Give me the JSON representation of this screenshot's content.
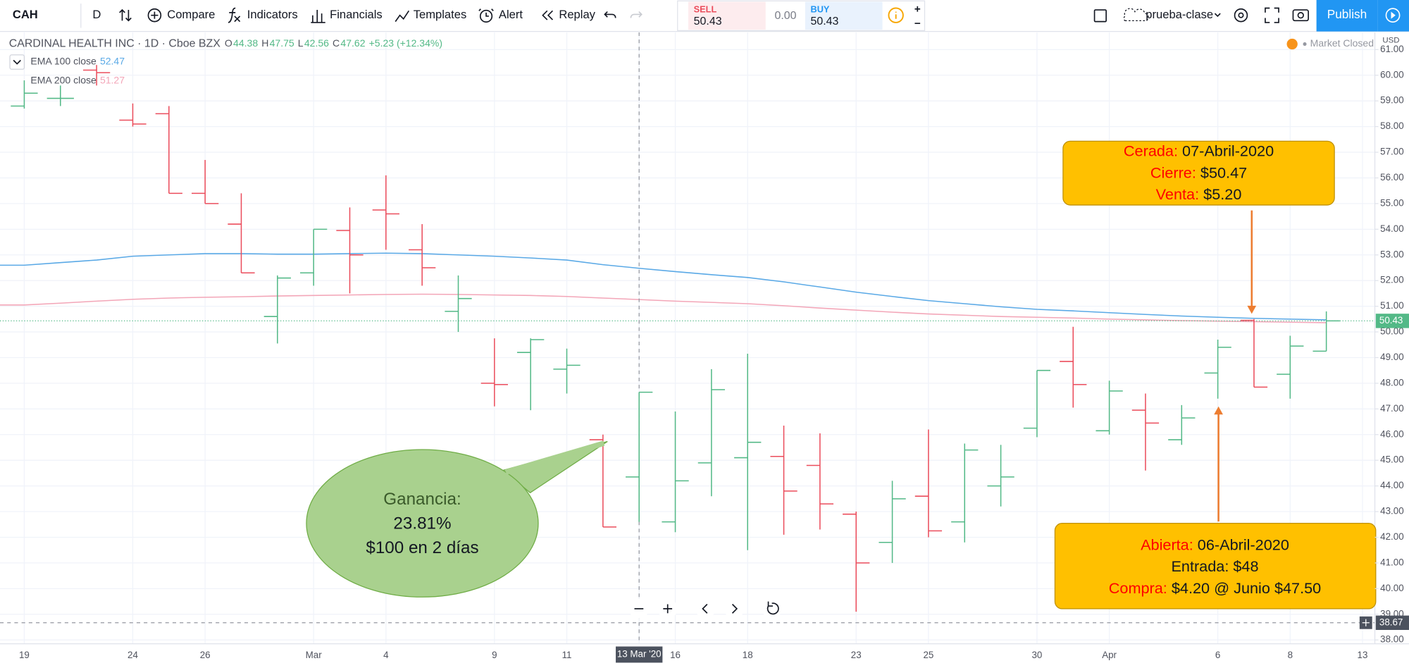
{
  "toolbar": {
    "symbol": "CAH",
    "interval": "D",
    "compare": "Compare",
    "indicators": "Indicators",
    "financials": "Financials",
    "templates": "Templates",
    "alert": "Alert",
    "replay": "Replay",
    "sell_label": "SELL",
    "sell_price": "50.43",
    "spread": "0.00",
    "buy_label": "BUY",
    "buy_price": "50.43",
    "layout_name": "prueba-clase",
    "publish": "Publish"
  },
  "legend": {
    "title": "CARDINAL HEALTH INC · 1D · Cboe BZX",
    "ohlc": [
      {
        "key": "O",
        "value": "44.38"
      },
      {
        "key": "H",
        "value": "47.75"
      },
      {
        "key": "L",
        "value": "42.56"
      },
      {
        "key": "C",
        "value": "47.62"
      }
    ],
    "change": "+5.23 (+12.34%)",
    "status": "Market Closed",
    "currency": "USD"
  },
  "chart_data": {
    "type": "ohlc",
    "up_color": "#53b987",
    "down_color": "#eb4d5c",
    "grid": true,
    "categories": [
      "19",
      null,
      null,
      "24",
      null,
      "26",
      null,
      null,
      "Mar",
      null,
      "4",
      null,
      null,
      "9",
      null,
      "11",
      null,
      "13 Mar '20",
      "16",
      null,
      "18",
      null,
      null,
      "23",
      null,
      "25",
      null,
      null,
      "30",
      null,
      "Apr",
      null,
      null,
      "6",
      null,
      "8",
      null,
      "13"
    ],
    "open": [
      58.8,
      59.1,
      60.2,
      58.25,
      58.5,
      55.4,
      54.2,
      50.6,
      52.3,
      53.95,
      54.75,
      53.2,
      50.8,
      48.0,
      49.2,
      48.55,
      45.8,
      44.35,
      42.6,
      44.9,
      45.1,
      45.15,
      44.8,
      42.9,
      41.8,
      43.6,
      42.6,
      44.0,
      46.25,
      48.85,
      46.15,
      46.95,
      45.8,
      48.4,
      50.45,
      48.35,
      49.25,
      null
    ],
    "high": [
      59.8,
      59.6,
      60.4,
      58.9,
      58.8,
      56.7,
      55.4,
      52.2,
      54.0,
      54.85,
      56.1,
      54.2,
      52.2,
      49.75,
      49.75,
      49.35,
      46.0,
      47.65,
      46.9,
      48.55,
      49.15,
      46.35,
      46.05,
      43.0,
      44.2,
      46.2,
      45.65,
      45.6,
      48.5,
      50.2,
      48.1,
      47.6,
      47.15,
      49.7,
      50.5,
      49.85,
      50.8,
      null
    ],
    "low": [
      58.7,
      58.8,
      59.6,
      58.0,
      55.4,
      55.0,
      52.3,
      49.55,
      51.8,
      51.5,
      53.2,
      51.8,
      50.0,
      47.1,
      46.95,
      47.6,
      42.4,
      42.6,
      42.2,
      43.6,
      41.5,
      42.1,
      42.3,
      39.1,
      41.0,
      42.0,
      41.8,
      43.2,
      45.9,
      47.05,
      46.0,
      44.6,
      45.6,
      47.4,
      47.85,
      47.4,
      49.25,
      null
    ],
    "close": [
      59.3,
      59.1,
      60.1,
      58.1,
      55.4,
      55.0,
      52.3,
      52.1,
      54.0,
      53.0,
      54.6,
      52.5,
      51.3,
      47.95,
      49.7,
      48.7,
      42.4,
      47.65,
      44.2,
      47.75,
      45.7,
      43.8,
      43.3,
      41.0,
      43.5,
      42.25,
      45.4,
      44.35,
      48.5,
      47.95,
      47.7,
      46.45,
      46.65,
      49.4,
      47.85,
      49.45,
      50.43,
      null
    ],
    "lines": [
      {
        "name": "EMA 100 close",
        "legend_value": "52.47",
        "color": "#5aa9e6",
        "values": [
          52.6,
          52.7,
          52.8,
          52.95,
          53.0,
          53.05,
          53.05,
          53.03,
          53.03,
          53.05,
          53.07,
          53.05,
          53.0,
          52.95,
          52.88,
          52.8,
          52.62,
          52.48,
          52.35,
          52.23,
          52.12,
          51.95,
          51.75,
          51.55,
          51.38,
          51.22,
          51.1,
          50.98,
          50.88,
          50.82,
          50.75,
          50.68,
          50.62,
          50.57,
          50.53,
          50.5,
          50.47,
          null
        ]
      },
      {
        "name": "EMA 200 close",
        "legend_value": "51.27",
        "color": "#f3a6b8",
        "values": [
          51.05,
          51.12,
          51.2,
          51.27,
          51.32,
          51.35,
          51.37,
          51.4,
          51.42,
          51.44,
          51.46,
          51.47,
          51.46,
          51.44,
          51.42,
          51.38,
          51.32,
          51.26,
          51.2,
          51.15,
          51.1,
          51.02,
          50.93,
          50.85,
          50.77,
          50.7,
          50.65,
          50.6,
          50.57,
          50.54,
          50.5,
          50.47,
          50.44,
          50.42,
          50.4,
          50.38,
          50.36,
          null
        ]
      }
    ],
    "ylim": [
      37.85,
      61.67
    ],
    "yticks": [
      {
        "value": 38,
        "label": "38.00"
      },
      {
        "value": 39,
        "label": "39.00"
      },
      {
        "value": 40,
        "label": "40.00"
      },
      {
        "value": 41,
        "label": "41.00"
      },
      {
        "value": 42,
        "label": "42.00"
      },
      {
        "value": 43,
        "label": "43.00"
      },
      {
        "value": 44,
        "label": "44.00"
      },
      {
        "value": 45,
        "label": "45.00"
      },
      {
        "value": 46,
        "label": "46.00"
      },
      {
        "value": 47,
        "label": "47.00"
      },
      {
        "value": 48,
        "label": "48.00"
      },
      {
        "value": 49,
        "label": "49.00"
      },
      {
        "value": 50,
        "label": "50.00"
      },
      {
        "value": 51,
        "label": "51.00"
      },
      {
        "value": 52,
        "label": "52.00"
      },
      {
        "value": 53,
        "label": "53.00"
      },
      {
        "value": 54,
        "label": "54.00"
      },
      {
        "value": 55,
        "label": "55.00"
      },
      {
        "value": 56,
        "label": "56.00"
      },
      {
        "value": 57,
        "label": "57.00"
      },
      {
        "value": 58,
        "label": "58.00"
      },
      {
        "value": 59,
        "label": "59.00"
      },
      {
        "value": 60,
        "label": "60.00"
      },
      {
        "value": 61,
        "label": "61.00"
      }
    ],
    "last_price": 50.43,
    "crosshair_price": 38.67,
    "crosshair_index": 17,
    "annotations": {
      "exit_box": [
        {
          "label": "Cerada:",
          "text": "07-Abril-2020"
        },
        {
          "label": "Cierre:",
          "text": "$50.47"
        },
        {
          "label": "Venta:",
          "text": "$5.20"
        }
      ],
      "entry_box": [
        {
          "label": "Abierta:",
          "text": "06-Abril-2020"
        },
        {
          "label": "",
          "text": "Entrada: $48"
        },
        {
          "label": "Compra:",
          "text": "$4.20 @ Junio $47.50"
        }
      ],
      "profit_bubble": [
        "Ganancia:",
        "23.81%",
        "$100 en 2 días"
      ]
    }
  }
}
